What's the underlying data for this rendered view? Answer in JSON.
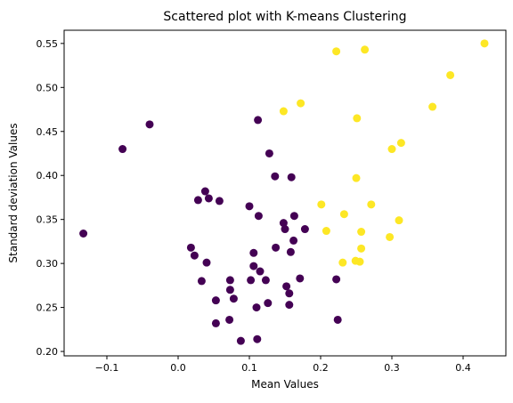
{
  "chart_data": {
    "type": "scatter",
    "title": "Scattered plot with K-means Clustering",
    "xlabel": "Mean Values",
    "ylabel": "Standard deviation Values",
    "xlim": [
      -0.16,
      0.46
    ],
    "ylim": [
      0.195,
      0.565
    ],
    "grid": false,
    "x_ticks": [
      -0.1,
      0.0,
      0.1,
      0.2,
      0.3,
      0.4
    ],
    "x_tick_labels": [
      "−0.1",
      "0.0",
      "0.1",
      "0.2",
      "0.3",
      "0.4"
    ],
    "y_ticks": [
      0.2,
      0.25,
      0.3,
      0.35,
      0.4,
      0.45,
      0.5,
      0.55
    ],
    "y_tick_labels": [
      "0.20",
      "0.25",
      "0.30",
      "0.35",
      "0.40",
      "0.45",
      "0.50",
      "0.55"
    ],
    "series": [
      {
        "color": "#440154",
        "points": [
          [
            -0.133,
            0.334
          ],
          [
            -0.078,
            0.43
          ],
          [
            -0.04,
            0.458
          ],
          [
            0.018,
            0.318
          ],
          [
            0.023,
            0.309
          ],
          [
            0.028,
            0.372
          ],
          [
            0.033,
            0.28
          ],
          [
            0.038,
            0.382
          ],
          [
            0.04,
            0.301
          ],
          [
            0.043,
            0.374
          ],
          [
            0.053,
            0.258
          ],
          [
            0.053,
            0.232
          ],
          [
            0.058,
            0.371
          ],
          [
            0.072,
            0.236
          ],
          [
            0.073,
            0.27
          ],
          [
            0.073,
            0.281
          ],
          [
            0.078,
            0.26
          ],
          [
            0.088,
            0.212
          ],
          [
            0.1,
            0.365
          ],
          [
            0.102,
            0.281
          ],
          [
            0.106,
            0.312
          ],
          [
            0.106,
            0.297
          ],
          [
            0.11,
            0.25
          ],
          [
            0.111,
            0.214
          ],
          [
            0.112,
            0.463
          ],
          [
            0.113,
            0.354
          ],
          [
            0.115,
            0.291
          ],
          [
            0.123,
            0.281
          ],
          [
            0.126,
            0.255
          ],
          [
            0.128,
            0.425
          ],
          [
            0.136,
            0.399
          ],
          [
            0.137,
            0.318
          ],
          [
            0.148,
            0.346
          ],
          [
            0.15,
            0.339
          ],
          [
            0.152,
            0.274
          ],
          [
            0.156,
            0.266
          ],
          [
            0.156,
            0.253
          ],
          [
            0.158,
            0.313
          ],
          [
            0.159,
            0.398
          ],
          [
            0.162,
            0.326
          ],
          [
            0.163,
            0.354
          ],
          [
            0.171,
            0.283
          ],
          [
            0.178,
            0.339
          ],
          [
            0.222,
            0.282
          ],
          [
            0.224,
            0.236
          ]
        ]
      },
      {
        "color": "#fde725",
        "points": [
          [
            0.148,
            0.473
          ],
          [
            0.172,
            0.482
          ],
          [
            0.201,
            0.367
          ],
          [
            0.208,
            0.337
          ],
          [
            0.222,
            0.541
          ],
          [
            0.231,
            0.301
          ],
          [
            0.233,
            0.356
          ],
          [
            0.249,
            0.303
          ],
          [
            0.25,
            0.397
          ],
          [
            0.251,
            0.465
          ],
          [
            0.255,
            0.302
          ],
          [
            0.257,
            0.336
          ],
          [
            0.257,
            0.317
          ],
          [
            0.262,
            0.543
          ],
          [
            0.271,
            0.367
          ],
          [
            0.297,
            0.33
          ],
          [
            0.3,
            0.43
          ],
          [
            0.31,
            0.349
          ],
          [
            0.313,
            0.437
          ],
          [
            0.357,
            0.478
          ],
          [
            0.382,
            0.514
          ],
          [
            0.43,
            0.55
          ]
        ]
      }
    ]
  }
}
